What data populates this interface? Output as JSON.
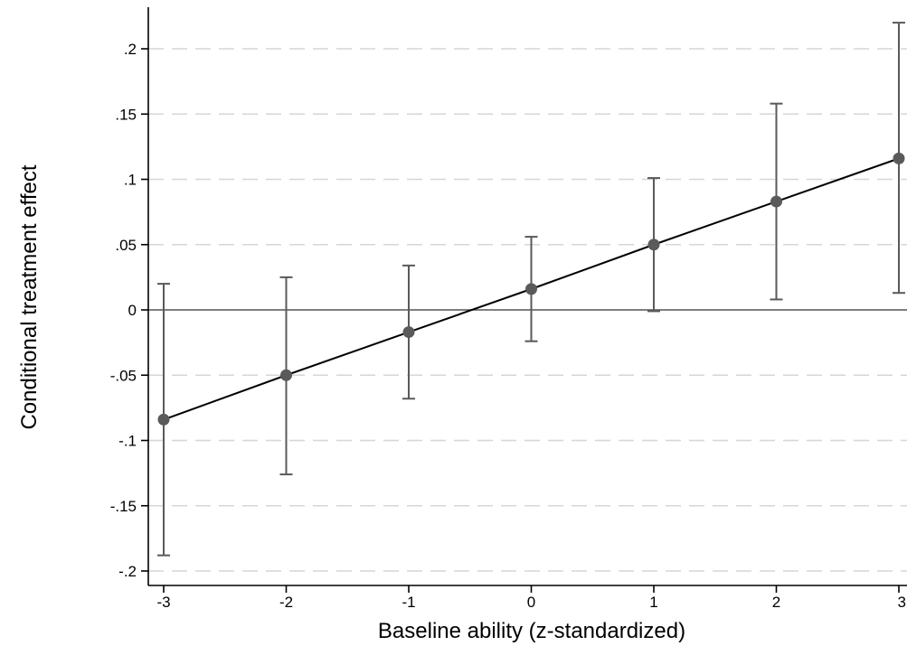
{
  "chart_data": {
    "type": "scatter",
    "xlabel": "Baseline ability (z-standardized)",
    "ylabel": "Conditional treatment effect",
    "xlim": [
      -3,
      3
    ],
    "ylim": [
      -0.2,
      0.22
    ],
    "x_ticks": [
      {
        "value": -3,
        "label": "-3"
      },
      {
        "value": -2,
        "label": "-2"
      },
      {
        "value": -1,
        "label": "-1"
      },
      {
        "value": 0,
        "label": "0"
      },
      {
        "value": 1,
        "label": "1"
      },
      {
        "value": 2,
        "label": "2"
      },
      {
        "value": 3,
        "label": "3"
      }
    ],
    "y_ticks": [
      {
        "value": 0.2,
        "label": ".2"
      },
      {
        "value": 0.15,
        "label": ".15"
      },
      {
        "value": 0.1,
        "label": ".1"
      },
      {
        "value": 0.05,
        "label": ".05"
      },
      {
        "value": 0,
        "label": "0"
      },
      {
        "value": -0.05,
        "label": "-.05"
      },
      {
        "value": -0.1,
        "label": "-.1"
      },
      {
        "value": -0.15,
        "label": "-.15"
      },
      {
        "value": -0.2,
        "label": "-.2"
      }
    ],
    "grid": "horizontal dashed",
    "reference_line_y": 0,
    "points": [
      {
        "x": -3,
        "y": -0.084,
        "ci_low": -0.188,
        "ci_high": 0.02
      },
      {
        "x": -2,
        "y": -0.05,
        "ci_low": -0.126,
        "ci_high": 0.025
      },
      {
        "x": -1,
        "y": -0.017,
        "ci_low": -0.068,
        "ci_high": 0.034
      },
      {
        "x": 0,
        "y": 0.016,
        "ci_low": -0.024,
        "ci_high": 0.056
      },
      {
        "x": 1,
        "y": 0.05,
        "ci_low": -0.001,
        "ci_high": 0.101
      },
      {
        "x": 2,
        "y": 0.083,
        "ci_low": 0.008,
        "ci_high": 0.158
      },
      {
        "x": 3,
        "y": 0.116,
        "ci_low": 0.013,
        "ci_high": 0.22
      }
    ],
    "colors": {
      "marker": "#5a5a5a",
      "error_bar": "#5a5a5a",
      "fit_line": "#000000",
      "grid": "#d6d6d6",
      "axis": "#000000"
    }
  }
}
